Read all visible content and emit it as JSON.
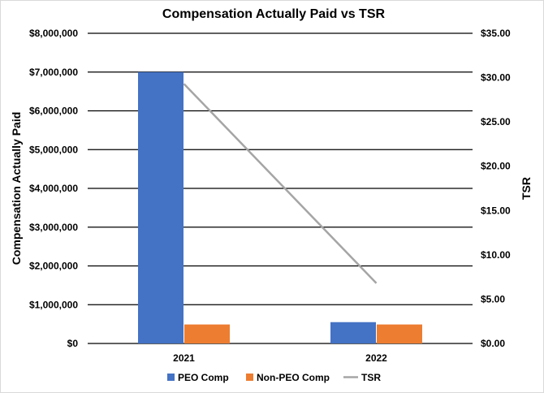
{
  "chart_data": {
    "type": "bar",
    "title": "Compensation Actually Paid vs TSR",
    "categories": [
      "2021",
      "2022"
    ],
    "series": [
      {
        "name": "PEO Comp",
        "type": "bar",
        "axis": "left",
        "color": "#4472C4",
        "values": [
          7000000,
          550000
        ]
      },
      {
        "name": "Non-PEO Comp",
        "type": "bar",
        "axis": "left",
        "color": "#ED7D31",
        "values": [
          490000,
          490000
        ]
      },
      {
        "name": "TSR",
        "type": "line",
        "axis": "right",
        "color": "#A5A5A5",
        "values": [
          29.3,
          6.8
        ]
      }
    ],
    "ylabel": "Compensation Actually Paid",
    "y2label": "TSR",
    "ylim": [
      0,
      8000000
    ],
    "y2lim": [
      0,
      35
    ],
    "yticks": [
      "$0",
      "$1,000,000",
      "$2,000,000",
      "$3,000,000",
      "$4,000,000",
      "$5,000,000",
      "$6,000,000",
      "$7,000,000",
      "$8,000,000"
    ],
    "y2ticks": [
      "$0.00",
      "$5.00",
      "$10.00",
      "$15.00",
      "$20.00",
      "$25.00",
      "$30.00",
      "$35.00"
    ],
    "grid": true,
    "legend": "bottom"
  }
}
